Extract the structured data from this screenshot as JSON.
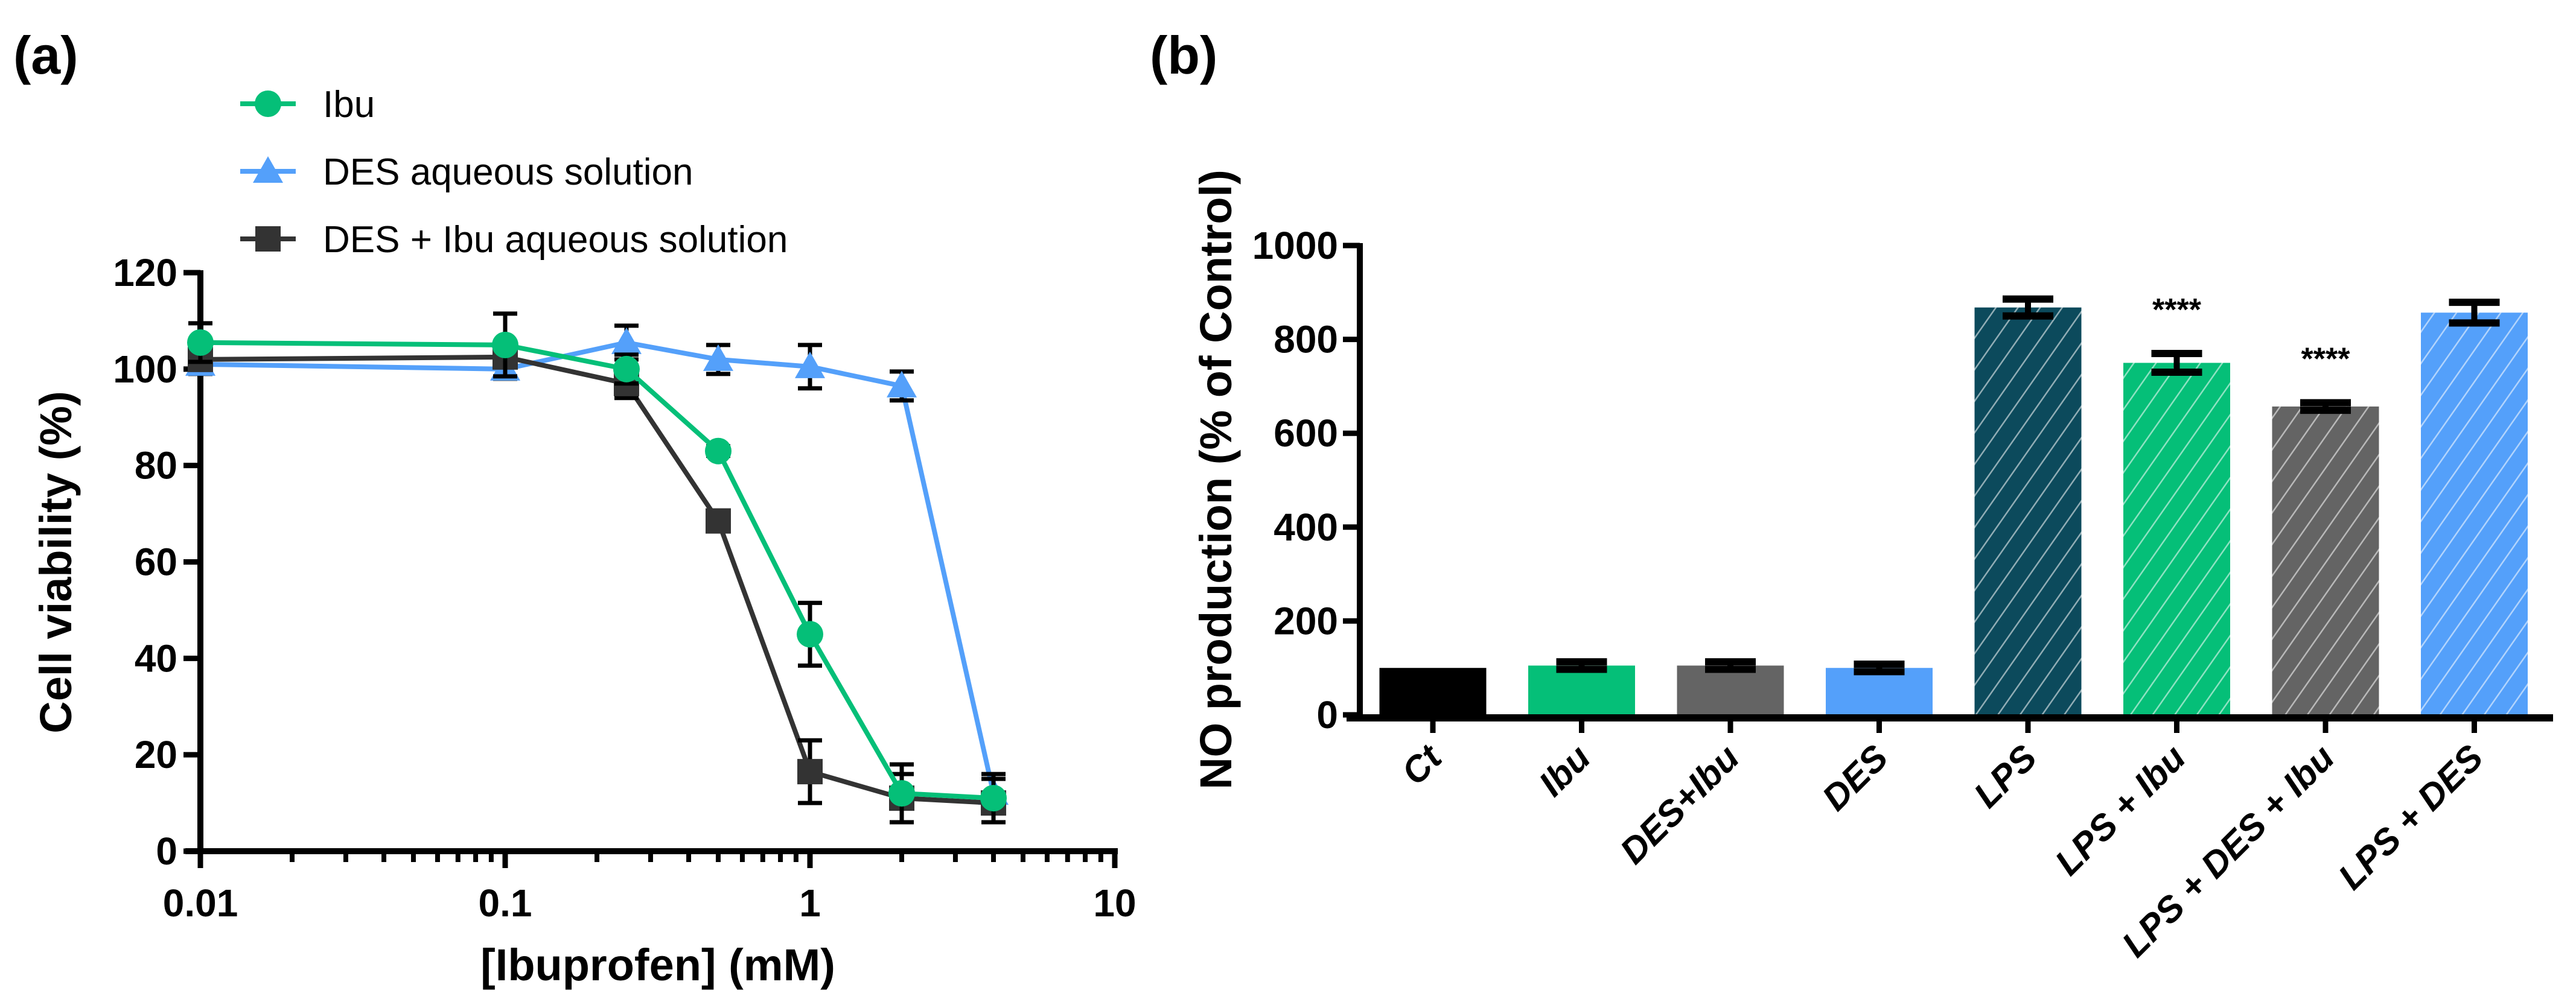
{
  "chart_data": [
    {
      "panel_label": "(a)",
      "type": "line",
      "xlabel": "[Ibuprofen] (mM)",
      "ylabel": "Cell viability (%)",
      "xscale": "log",
      "xlim": [
        0.01,
        10
      ],
      "ylim": [
        0,
        120
      ],
      "xticks": [
        "0.01",
        "0.1",
        "1",
        "10"
      ],
      "yticks": [
        "0",
        "20",
        "40",
        "60",
        "80",
        "100",
        "120"
      ],
      "legend_position": "top-left",
      "x": [
        0.01,
        0.1,
        0.25,
        0.5,
        1,
        2,
        4
      ],
      "series": [
        {
          "name": "Ibu",
          "color": "#05BF78",
          "marker": "circle",
          "values": [
            105.5,
            105,
            100,
            83,
            45,
            12,
            11
          ],
          "errors": [
            4,
            6.5,
            3,
            1,
            6.5,
            6,
            5
          ]
        },
        {
          "name": "DES aqueous solution",
          "color": "#54A0FA",
          "marker": "triangle",
          "values": [
            101,
            100,
            105.5,
            102,
            100.5,
            96.5,
            12
          ],
          "errors": [
            2,
            2,
            3.5,
            3,
            4.5,
            3,
            3
          ]
        },
        {
          "name": "DES + Ibu aqueous solution",
          "color": "#333333",
          "marker": "square",
          "values": [
            102,
            102.5,
            97,
            68.5,
            16.5,
            11,
            10
          ],
          "errors": [
            2,
            2,
            3,
            0,
            6.5,
            5,
            2
          ]
        }
      ]
    },
    {
      "panel_label": "(b)",
      "type": "bar",
      "xlabel": "",
      "ylabel": "NO production (% of Control)",
      "ylim": [
        0,
        1000
      ],
      "yticks": [
        "0",
        "200",
        "400",
        "600",
        "800",
        "1000"
      ],
      "categories": [
        "Ct",
        "Ibu",
        "DES+Ibu",
        "DES",
        "LPS",
        "LPS + Ibu",
        "LPS + DES + Ibu",
        "LPS + DES"
      ],
      "values": [
        100,
        105,
        105,
        100,
        868,
        750,
        657,
        857
      ],
      "errors": [
        0,
        8,
        8,
        8,
        18,
        20,
        8,
        22
      ],
      "colors": [
        "#000000",
        "#05BF78",
        "#646464",
        "#54A0FA",
        "#0C4A5C",
        "#05BF78",
        "#646464",
        "#54A0FA"
      ],
      "hatched": [
        false,
        false,
        false,
        false,
        true,
        true,
        true,
        true
      ],
      "annotations": [
        "",
        "",
        "",
        "",
        "",
        "****",
        "****",
        ""
      ]
    }
  ]
}
